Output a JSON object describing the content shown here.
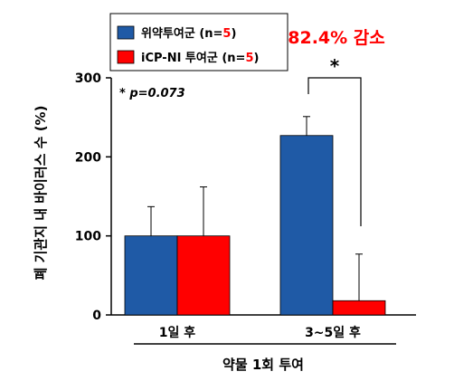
{
  "chart_data": {
    "type": "bar",
    "title": "",
    "ylabel": "폐 기관지 내 바이러스 수 (%)",
    "xlabel": "약물 1회 투여",
    "ylim": [
      0,
      300
    ],
    "yticks": [
      0,
      100,
      200,
      300
    ],
    "categories": [
      "1일 후",
      "3~5일 후"
    ],
    "series": [
      {
        "name_prefix": "위약투여군 (n=",
        "n": "5",
        "name_suffix": ")",
        "color": "#1f5aa6",
        "values": [
          100,
          227
        ],
        "errors": [
          37,
          24
        ]
      },
      {
        "name_prefix": "iCP-NI 투여군 (n=",
        "n": "5",
        "name_suffix": ")",
        "color": "#ff0000",
        "values": [
          100,
          18
        ],
        "errors": [
          62,
          59
        ]
      }
    ],
    "annotations": {
      "pvalue": "* p=0.073",
      "reduction": "82.4% 감소",
      "significance": "*"
    },
    "legend_position": "top-left",
    "grid": false
  }
}
